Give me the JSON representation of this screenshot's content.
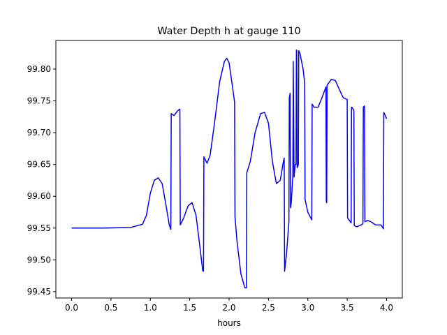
{
  "chart_data": {
    "type": "line",
    "title": "Water Depth h at gauge 110",
    "xlabel": "hours",
    "ylabel": "",
    "xlim": [
      -0.2,
      4.2
    ],
    "ylim": [
      99.44,
      99.845
    ],
    "xticks": [
      0.0,
      0.5,
      1.0,
      1.5,
      2.0,
      2.5,
      3.0,
      3.5,
      4.0
    ],
    "xtick_labels": [
      "0.0",
      "0.5",
      "1.0",
      "1.5",
      "2.0",
      "2.5",
      "3.0",
      "3.5",
      "4.0"
    ],
    "yticks": [
      99.45,
      99.5,
      99.55,
      99.6,
      99.65,
      99.7,
      99.75,
      99.8
    ],
    "ytick_labels": [
      "99.45",
      "99.50",
      "99.55",
      "99.60",
      "99.65",
      "99.70",
      "99.75",
      "99.80"
    ],
    "grid": false,
    "series": [
      {
        "color": "#0000ff",
        "points": [
          [
            0.0,
            99.55
          ],
          [
            0.4,
            99.55
          ],
          [
            0.75,
            99.551
          ],
          [
            0.9,
            99.556
          ],
          [
            0.95,
            99.57
          ],
          [
            1.0,
            99.605
          ],
          [
            1.05,
            99.625
          ],
          [
            1.1,
            99.629
          ],
          [
            1.15,
            99.62
          ],
          [
            1.2,
            99.585
          ],
          [
            1.24,
            99.555
          ],
          [
            1.26,
            99.548
          ],
          [
            1.265,
            99.73
          ],
          [
            1.3,
            99.727
          ],
          [
            1.35,
            99.735
          ],
          [
            1.375,
            99.737
          ],
          [
            1.38,
            99.555
          ],
          [
            1.42,
            99.565
          ],
          [
            1.48,
            99.585
          ],
          [
            1.53,
            99.59
          ],
          [
            1.58,
            99.57
          ],
          [
            1.62,
            99.53
          ],
          [
            1.665,
            99.483
          ],
          [
            1.675,
            99.482
          ],
          [
            1.68,
            99.662
          ],
          [
            1.72,
            99.652
          ],
          [
            1.76,
            99.665
          ],
          [
            1.82,
            99.72
          ],
          [
            1.88,
            99.78
          ],
          [
            1.94,
            99.812
          ],
          [
            1.97,
            99.817
          ],
          [
            2.0,
            99.81
          ],
          [
            2.04,
            99.775
          ],
          [
            2.07,
            99.748
          ],
          [
            2.075,
            99.568
          ],
          [
            2.1,
            99.53
          ],
          [
            2.15,
            99.478
          ],
          [
            2.2,
            99.456
          ],
          [
            2.22,
            99.456
          ],
          [
            2.225,
            99.637
          ],
          [
            2.27,
            99.655
          ],
          [
            2.33,
            99.7
          ],
          [
            2.4,
            99.73
          ],
          [
            2.45,
            99.732
          ],
          [
            2.5,
            99.715
          ],
          [
            2.55,
            99.655
          ],
          [
            2.6,
            99.62
          ],
          [
            2.65,
            99.625
          ],
          [
            2.69,
            99.655
          ],
          [
            2.7,
            99.66
          ],
          [
            2.705,
            99.482
          ],
          [
            2.73,
            99.51
          ],
          [
            2.76,
            99.56
          ],
          [
            2.765,
            99.755
          ],
          [
            2.775,
            99.762
          ],
          [
            2.78,
            99.582
          ],
          [
            2.79,
            99.59
          ],
          [
            2.81,
            99.633
          ],
          [
            2.815,
            99.812
          ],
          [
            2.825,
            99.63
          ],
          [
            2.84,
            99.65
          ],
          [
            2.85,
            99.65
          ],
          [
            2.855,
            99.83
          ],
          [
            2.86,
            99.829
          ],
          [
            2.865,
            99.645
          ],
          [
            2.88,
            99.65
          ],
          [
            2.885,
            99.829
          ],
          [
            2.9,
            99.825
          ],
          [
            2.94,
            99.8
          ],
          [
            2.96,
            99.778
          ],
          [
            2.965,
            99.595
          ],
          [
            3.0,
            99.575
          ],
          [
            3.05,
            99.563
          ],
          [
            3.055,
            99.745
          ],
          [
            3.08,
            99.74
          ],
          [
            3.13,
            99.74
          ],
          [
            3.18,
            99.755
          ],
          [
            3.23,
            99.772
          ],
          [
            3.235,
            99.592
          ],
          [
            3.24,
            99.59
          ],
          [
            3.245,
            99.775
          ],
          [
            3.3,
            99.784
          ],
          [
            3.35,
            99.782
          ],
          [
            3.4,
            99.768
          ],
          [
            3.45,
            99.755
          ],
          [
            3.5,
            99.752
          ],
          [
            3.505,
            99.566
          ],
          [
            3.55,
            99.558
          ],
          [
            3.555,
            99.74
          ],
          [
            3.56,
            99.74
          ],
          [
            3.585,
            99.735
          ],
          [
            3.59,
            99.554
          ],
          [
            3.62,
            99.552
          ],
          [
            3.68,
            99.555
          ],
          [
            3.7,
            99.557
          ],
          [
            3.705,
            99.74
          ],
          [
            3.72,
            99.742
          ],
          [
            3.725,
            99.56
          ],
          [
            3.76,
            99.562
          ],
          [
            3.8,
            99.56
          ],
          [
            3.86,
            99.555
          ],
          [
            3.93,
            99.555
          ],
          [
            3.96,
            99.549
          ],
          [
            3.965,
            99.732
          ],
          [
            3.98,
            99.728
          ],
          [
            4.0,
            99.722
          ]
        ]
      }
    ]
  }
}
